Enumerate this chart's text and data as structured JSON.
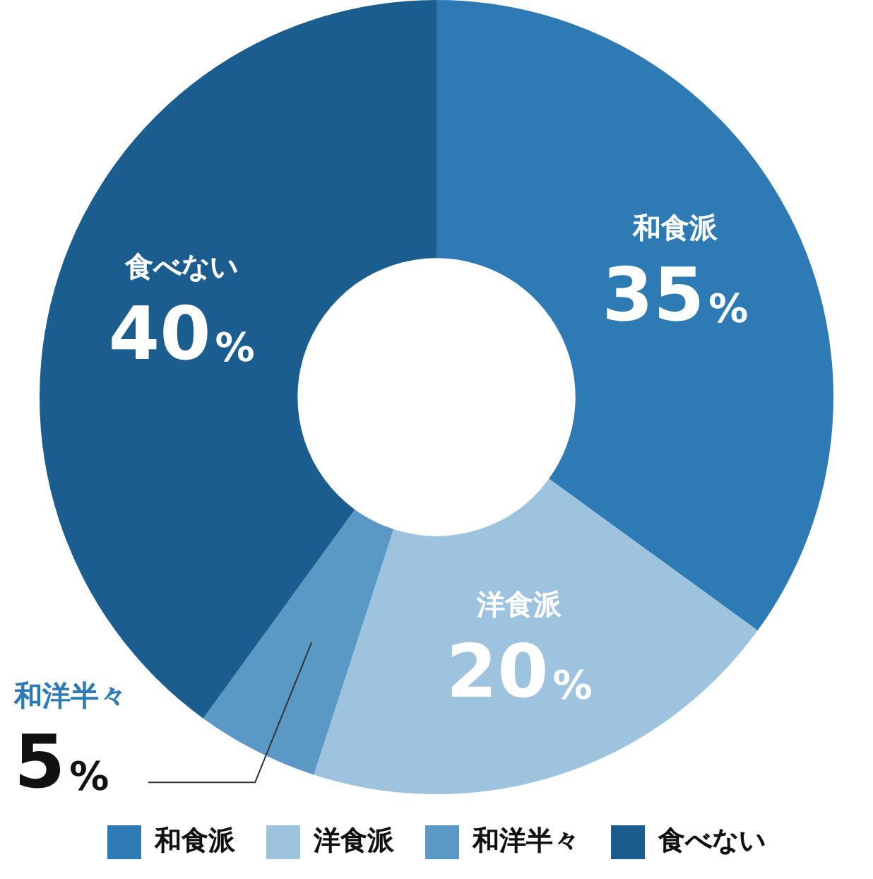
{
  "chart_data": {
    "type": "donut",
    "categories": [
      "和食派",
      "洋食派",
      "和洋半々",
      "食べない"
    ],
    "values": [
      35,
      20,
      5,
      40
    ],
    "colors": [
      "#2e7ab5",
      "#9dc3de",
      "#5a98c6",
      "#1c5d8f"
    ],
    "value_labels": [
      "35%",
      "20%",
      "5%",
      "40%"
    ],
    "legend": "bottom"
  }
}
